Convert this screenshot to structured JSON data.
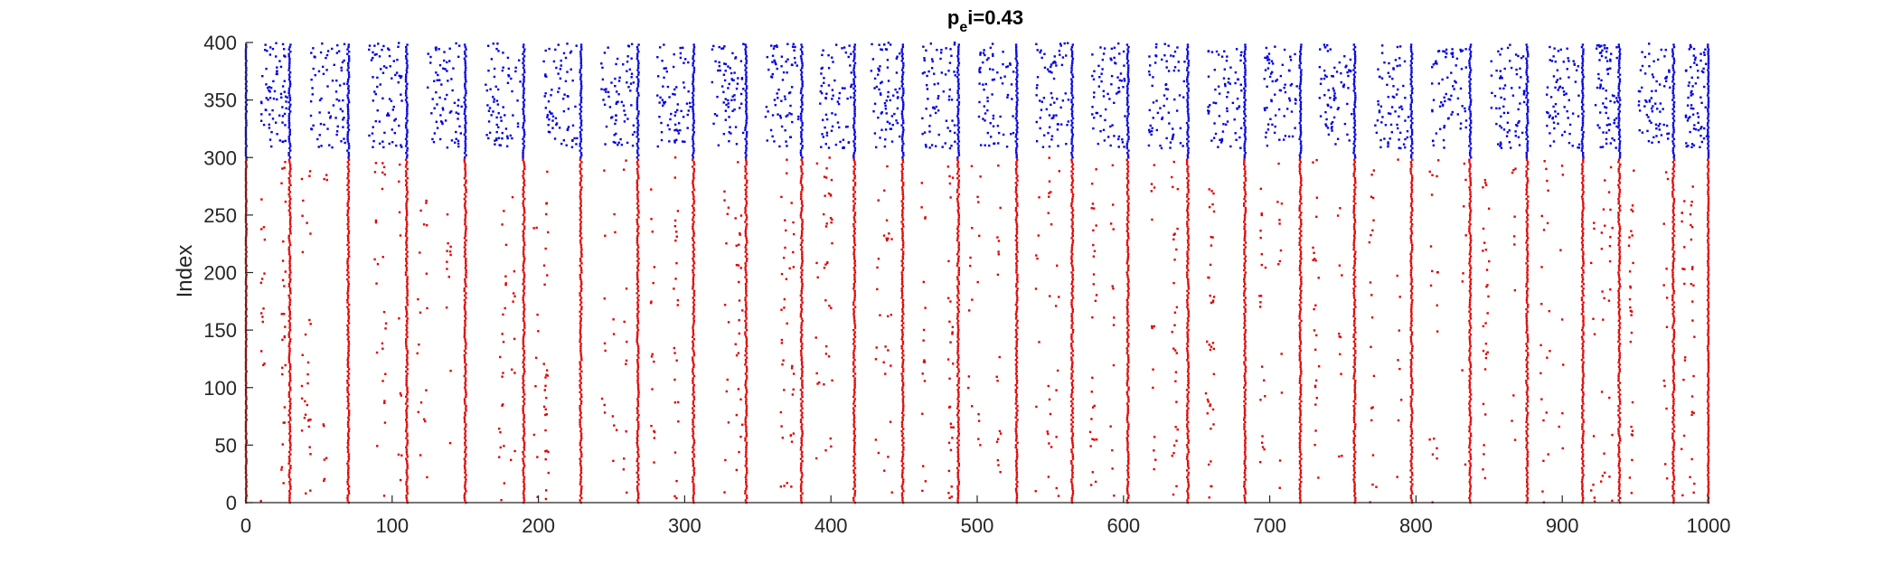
{
  "chart_data": {
    "type": "scatter",
    "title_main": "p",
    "title_sub": "e",
    "title_rest": "i=0.43",
    "xlabel": "",
    "ylabel": "Index",
    "xlim": [
      0,
      1000
    ],
    "ylim": [
      0,
      400
    ],
    "xticks": [
      0,
      100,
      200,
      300,
      400,
      500,
      600,
      700,
      800,
      900,
      1000
    ],
    "yticks": [
      0,
      50,
      100,
      150,
      200,
      250,
      300,
      350,
      400
    ],
    "grid": false,
    "legend": "none",
    "burst_times": [
      0,
      30,
      70,
      110,
      150,
      190,
      229,
      268,
      306,
      342,
      380,
      416,
      449,
      487,
      527,
      565,
      603,
      644,
      683,
      721,
      758,
      797,
      837,
      876,
      914,
      939,
      976,
      1000
    ],
    "sparse_intervals": [
      [
        20,
        25
      ],
      [
        38,
        45
      ],
      [
        37,
        45
      ],
      [
        37,
        45
      ],
      [
        39,
        45
      ],
      [
        37,
        45
      ],
      [
        38,
        45
      ],
      [
        37,
        45
      ],
      [
        36,
        45
      ],
      [
        37,
        45
      ],
      [
        37,
        45
      ],
      [
        33,
        45
      ],
      [
        37,
        45
      ],
      [
        39,
        45
      ],
      [
        38,
        45
      ],
      [
        37,
        45
      ],
      [
        40,
        45
      ],
      [
        39,
        45
      ],
      [
        37,
        45
      ],
      [
        36,
        45
      ],
      [
        38,
        45
      ],
      [
        39,
        45
      ],
      [
        38,
        45
      ],
      [
        37,
        45
      ],
      [
        24,
        30
      ],
      [
        36,
        45
      ],
      [
        24,
        30
      ]
    ],
    "series": [
      {
        "name": "",
        "index_range": [
          0,
          300
        ],
        "color": "#e00000"
      },
      {
        "name": "",
        "index_range": [
          300,
          400
        ],
        "color": "#0000e0"
      }
    ]
  }
}
